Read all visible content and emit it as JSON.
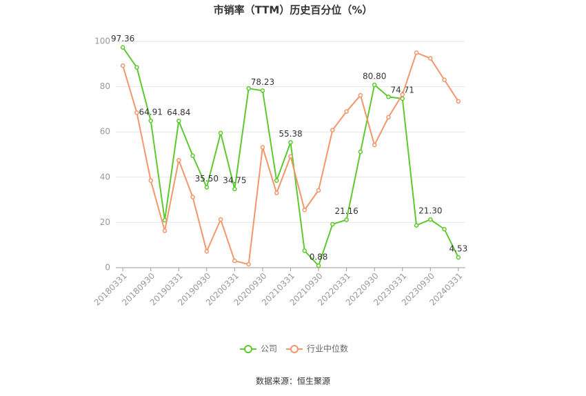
{
  "chart_data": {
    "type": "line",
    "title": "市销率（TTM）历史百分位（%）",
    "categories": [
      "20180331",
      null,
      "20180930",
      null,
      "20190331",
      null,
      "20190930",
      null,
      "20200331",
      null,
      "20200930",
      null,
      "20210331",
      null,
      "20210930",
      null,
      "20220331",
      null,
      "20220930",
      null,
      "20230331",
      null,
      "20230930",
      null,
      "20240331"
    ],
    "series": [
      {
        "name": "公司",
        "color": "#5cc92e",
        "values": [
          97.36,
          88.5,
          64.91,
          21,
          64.84,
          49.5,
          35.5,
          59.5,
          34.75,
          79.2,
          78.23,
          38.5,
          55.38,
          7.5,
          0.88,
          19.2,
          21.16,
          51.2,
          80.8,
          75.5,
          74.71,
          18.7,
          21.3,
          17,
          4.53
        ],
        "value_labels": [
          "97.36",
          null,
          "64.91",
          null,
          "64.84",
          null,
          "35.50",
          null,
          "34.75",
          null,
          "78.23",
          null,
          "55.38",
          null,
          "0.88",
          null,
          "21.16",
          null,
          "80.80",
          null,
          "74.71",
          null,
          "21.30",
          null,
          "4.53"
        ]
      },
      {
        "name": "行业中位数",
        "color": "#f4956a",
        "values": [
          89.3,
          68.5,
          38.5,
          16.3,
          47.5,
          31.2,
          7.2,
          21.3,
          3,
          1.5,
          53.2,
          33,
          49.2,
          25.5,
          34.2,
          60.8,
          69,
          76.2,
          54.2,
          66.5,
          76.5,
          95,
          92.5,
          83,
          73.5
        ]
      }
    ],
    "ylim": [
      0,
      100
    ],
    "yticks": [
      0,
      20,
      40,
      60,
      80,
      100
    ],
    "grid": true,
    "source": "数据来源：恒生聚源"
  }
}
